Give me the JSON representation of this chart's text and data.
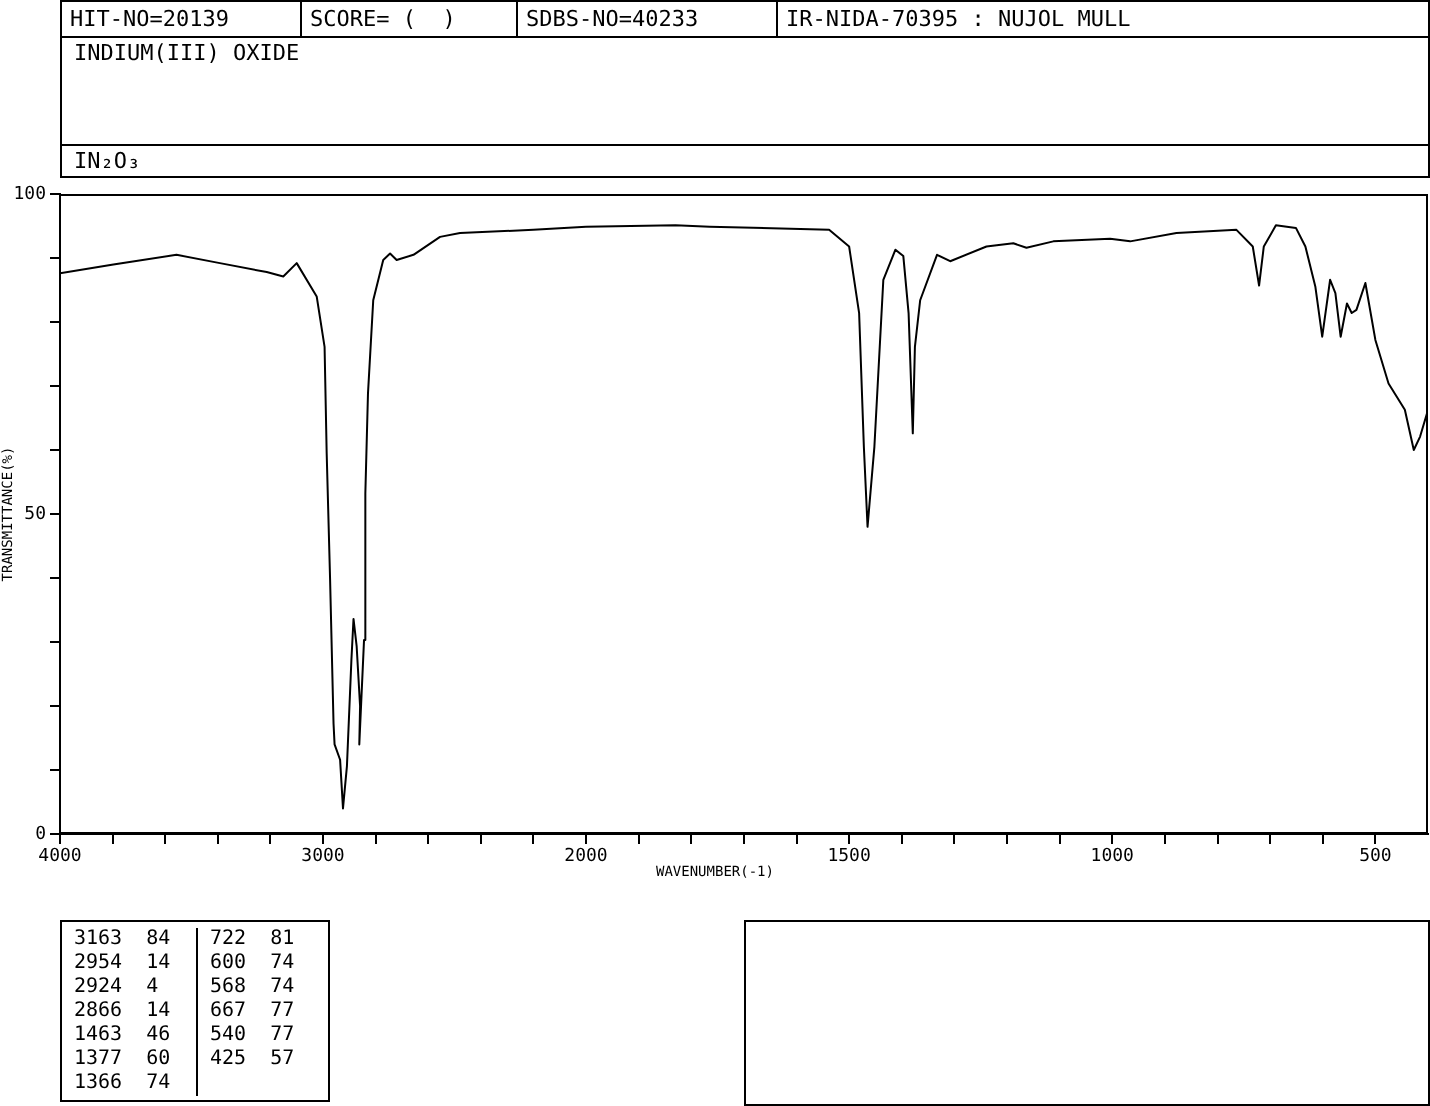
{
  "chart_data": [
    {
      "type": "line",
      "title": "INDIUM(III) OXIDE",
      "subtitle": "IN₂O₃",
      "xlabel": "WAVENUMBER(-1)",
      "ylabel": "TRANSMITTANCE(%)",
      "annotations": [
        "HIT-NO=20139",
        "SCORE= (  )",
        "SDBS-NO=40233",
        "IR-NIDA-70395 : NUJOL MULL",
        "3163 84",
        "2954 14",
        "2924 4",
        "2866 14",
        "1463 46",
        "1377 60",
        "1366 74",
        "722 81",
        "600 74",
        "568 74",
        "667 77",
        "540 77",
        "425 57"
      ],
      "x": [
        4000,
        3797,
        3557,
        3392,
        3214,
        3151,
        3100,
        3024,
        2994,
        2986,
        2973,
        2960,
        2956,
        2935,
        2924,
        2909,
        2892,
        2884,
        2872,
        2859,
        2862,
        2844,
        2839,
        2829,
        2809,
        2771,
        2745,
        2720,
        2656,
        2555,
        2479,
        2200,
        2000
      ],
      "series": [
        {
          "color": "#000000",
          "values": [
            87.6,
            89.0,
            90.5,
            89.2,
            87.8,
            87.1,
            89.2,
            84.0,
            76.1,
            59.5,
            39.7,
            17.3,
            14,
            11.6,
            4,
            10.6,
            27.2,
            33.6,
            29.3,
            20,
            14,
            30.3,
            53.2,
            68.8,
            83.4,
            89.7,
            90.7,
            89.7,
            90.5,
            93.3,
            93.9,
            94.4,
            94.9
          ]
        }
      ],
      "xlim": [
        4000,
        2000
      ],
      "xticks": [
        4000,
        {
          "value": 3800,
          "label": null
        },
        {
          "value": 3600,
          "label": null
        },
        {
          "value": 3400,
          "label": null
        },
        {
          "value": 3200,
          "label": null
        },
        3000,
        {
          "value": 2800,
          "label": null
        },
        {
          "value": 2600,
          "label": null
        },
        {
          "value": 2400,
          "label": null
        },
        {
          "value": 2200,
          "label": null
        },
        2000
      ],
      "ylim": [
        0,
        100
      ],
      "yticks": [
        0,
        {
          "value": 10,
          "label": null
        },
        {
          "value": 20,
          "label": null
        },
        {
          "value": 30,
          "label": null
        },
        {
          "value": 40,
          "label": null
        },
        50,
        {
          "value": 60,
          "label": null
        },
        {
          "value": 70,
          "label": null
        },
        {
          "value": 80,
          "label": null
        },
        {
          "value": 90,
          "label": null
        },
        100
      ],
      "grid": false,
      "legend": false,
      "marker": "none",
      "line_style": "solid"
    },
    {
      "type": "line",
      "x": [
        2000,
        1830,
        1765,
        1538,
        1500,
        1481,
        1472,
        1465,
        1452,
        1435,
        1412,
        1397,
        1387,
        1379,
        1375,
        1365,
        1333,
        1308,
        1239,
        1188,
        1163,
        1112,
        1004,
        966,
        878,
        764,
        733,
        721,
        712,
        689,
        651,
        633,
        614,
        601,
        586,
        576,
        566,
        554,
        545,
        536,
        519,
        500,
        475,
        444,
        427,
        415,
        402
      ],
      "series": [
        {
          "color": "#000000",
          "values": [
            94.9,
            95.1,
            94.9,
            94.4,
            91.8,
            81.4,
            60.5,
            48,
            60.5,
            86.6,
            91.3,
            90.3,
            81.4,
            62.6,
            76.1,
            83.4,
            90.5,
            89.5,
            91.8,
            92.3,
            91.6,
            92.6,
            93.0,
            92.6,
            93.9,
            94.4,
            91.8,
            85.7,
            91.8,
            95.1,
            94.7,
            91.8,
            85.5,
            77.7,
            86.6,
            84.5,
            77.7,
            82.9,
            81.4,
            81.9,
            86.1,
            77.2,
            70.4,
            66.3,
            60.0,
            62.1,
            65.7
          ]
        }
      ],
      "xlim": [
        2000,
        400
      ],
      "xticks": [
        {
          "value": 1900,
          "label": null
        },
        {
          "value": 1800,
          "label": null
        },
        {
          "value": 1700,
          "label": null
        },
        {
          "value": 1600,
          "label": null
        },
        1500,
        {
          "value": 1400,
          "label": null
        },
        {
          "value": 1300,
          "label": null
        },
        {
          "value": 1200,
          "label": null
        },
        {
          "value": 1100,
          "label": null
        },
        1000,
        {
          "value": 900,
          "label": null
        },
        {
          "value": 800,
          "label": null
        },
        {
          "value": 700,
          "label": null
        },
        {
          "value": 600,
          "label": null
        },
        500
      ],
      "ylim": [
        0,
        100
      ],
      "tick_labels": "x",
      "grid": false,
      "legend": false,
      "marker": "none",
      "line_style": "solid"
    }
  ]
}
